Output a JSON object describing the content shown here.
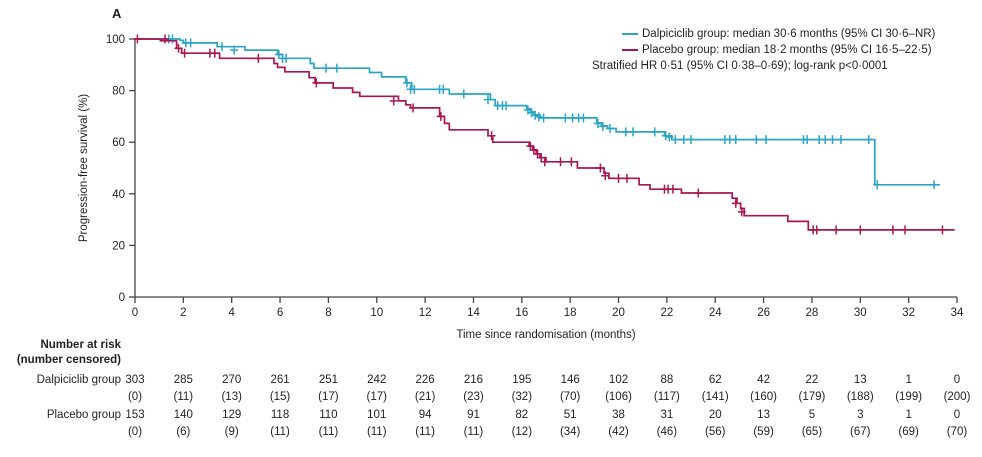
{
  "panel": {
    "label": "A"
  },
  "colors": {
    "dalpiciclib": "#2CA5C4",
    "placebo": "#A81653",
    "axis": "#454547",
    "text": "#231f20"
  },
  "legend": {
    "items": [
      {
        "label": "Dalpiciclib group: median 30·6 months (95% CI 30·6–NR)",
        "color": "#2CA5C4"
      },
      {
        "label": "Placebo group: median 18·2 months (95% CI 16·5–22·5)",
        "color": "#A81653"
      }
    ],
    "note": "Stratified HR 0·51 (95% CI 0·38–0·69); log-rank p<0·0001"
  },
  "chart_data": {
    "type": "line",
    "subtype": "kaplan_meier_step",
    "xlabel": "Time since randomisation (months)",
    "ylabel": "Progression-free survival (%)",
    "xlim": [
      0,
      34
    ],
    "ylim": [
      0,
      100
    ],
    "xticks": [
      0,
      2,
      4,
      6,
      8,
      10,
      12,
      14,
      16,
      18,
      20,
      22,
      24,
      26,
      28,
      30,
      32,
      34
    ],
    "yticks": [
      0,
      20,
      40,
      60,
      80,
      100
    ],
    "grid": false,
    "legend_position": "top-right",
    "series": [
      {
        "name": "Dalpiciclib group",
        "slug": "dalpiciclib",
        "color": "#2CA5C4",
        "start": [
          0,
          100
        ],
        "end_x": 33.3,
        "drops": [
          [
            1.86,
            99.5
          ],
          [
            2.0,
            98.5
          ],
          [
            3.4,
            97
          ],
          [
            4.55,
            95.7
          ],
          [
            5.9,
            94
          ],
          [
            6.1,
            92.5
          ],
          [
            7.25,
            90.5
          ],
          [
            7.4,
            88.7
          ],
          [
            9.7,
            87
          ],
          [
            10.2,
            85.3
          ],
          [
            11.2,
            83
          ],
          [
            11.45,
            80.5
          ],
          [
            13.0,
            78.7
          ],
          [
            14.7,
            76.5
          ],
          [
            14.9,
            74.2
          ],
          [
            16.2,
            73
          ],
          [
            16.35,
            71.8
          ],
          [
            16.5,
            70.6
          ],
          [
            16.75,
            69.4
          ],
          [
            19.1,
            67.5
          ],
          [
            19.3,
            66.3
          ],
          [
            19.55,
            65.3
          ],
          [
            19.9,
            64
          ],
          [
            21.9,
            62.5
          ],
          [
            22.2,
            61
          ],
          [
            30.6,
            43.5
          ]
        ],
        "censors": [
          [
            1.4,
            100
          ],
          [
            1.55,
            100
          ],
          [
            2.1,
            98.5
          ],
          [
            2.3,
            98.5
          ],
          [
            3.6,
            97
          ],
          [
            4.1,
            95.7
          ],
          [
            5.95,
            94
          ],
          [
            6.1,
            92.5
          ],
          [
            6.25,
            92.5
          ],
          [
            7.9,
            88.7
          ],
          [
            8.35,
            88.7
          ],
          [
            11.25,
            83
          ],
          [
            11.4,
            80.5
          ],
          [
            11.55,
            80.5
          ],
          [
            12.6,
            80.5
          ],
          [
            12.75,
            80.5
          ],
          [
            13.6,
            78.7
          ],
          [
            14.6,
            76.5
          ],
          [
            15.0,
            74.2
          ],
          [
            15.2,
            74.2
          ],
          [
            15.35,
            74.2
          ],
          [
            16.25,
            72.5
          ],
          [
            16.4,
            71.4
          ],
          [
            16.55,
            70.4
          ],
          [
            16.7,
            69.8
          ],
          [
            16.9,
            69.4
          ],
          [
            17.8,
            69.4
          ],
          [
            18.1,
            69.4
          ],
          [
            18.35,
            69.4
          ],
          [
            18.55,
            69.4
          ],
          [
            19.15,
            67.2
          ],
          [
            19.35,
            66.1
          ],
          [
            19.65,
            65.3
          ],
          [
            20.3,
            64
          ],
          [
            20.6,
            64
          ],
          [
            21.5,
            64
          ],
          [
            21.95,
            62.5
          ],
          [
            22.1,
            62
          ],
          [
            22.35,
            61
          ],
          [
            22.7,
            61
          ],
          [
            23.0,
            61
          ],
          [
            24.4,
            61
          ],
          [
            24.6,
            61
          ],
          [
            24.85,
            61
          ],
          [
            25.7,
            61
          ],
          [
            26.1,
            61
          ],
          [
            27.65,
            61
          ],
          [
            27.8,
            61
          ],
          [
            28.3,
            61
          ],
          [
            28.55,
            61
          ],
          [
            28.85,
            61
          ],
          [
            29.2,
            61
          ],
          [
            30.35,
            61
          ],
          [
            30.7,
            43.5
          ],
          [
            33.05,
            43.5
          ]
        ]
      },
      {
        "name": "Placebo group",
        "slug": "placebo",
        "color": "#A81653",
        "start": [
          0,
          100
        ],
        "end_x": 33.9,
        "drops": [
          [
            1.05,
            99.3
          ],
          [
            1.72,
            96.4
          ],
          [
            1.93,
            94.5
          ],
          [
            3.5,
            92.5
          ],
          [
            5.75,
            90.5
          ],
          [
            5.9,
            89
          ],
          [
            6.2,
            87.3
          ],
          [
            7.2,
            85
          ],
          [
            7.45,
            83
          ],
          [
            8.2,
            81
          ],
          [
            9.0,
            79.3
          ],
          [
            9.3,
            77.8
          ],
          [
            10.9,
            76
          ],
          [
            11.2,
            74.5
          ],
          [
            11.4,
            73.3
          ],
          [
            12.6,
            70
          ],
          [
            12.8,
            67.3
          ],
          [
            13.0,
            64.8
          ],
          [
            14.6,
            62.5
          ],
          [
            14.8,
            60
          ],
          [
            16.3,
            58.5
          ],
          [
            16.45,
            57
          ],
          [
            16.6,
            55.5
          ],
          [
            16.75,
            54
          ],
          [
            17.0,
            52.4
          ],
          [
            18.3,
            50
          ],
          [
            19.4,
            48
          ],
          [
            19.6,
            46
          ],
          [
            20.85,
            43.5
          ],
          [
            21.3,
            41.8
          ],
          [
            22.6,
            40.3
          ],
          [
            24.7,
            38.3
          ],
          [
            24.9,
            36.3
          ],
          [
            25.05,
            34.3
          ],
          [
            25.2,
            31.5
          ],
          [
            27.0,
            29.3
          ],
          [
            27.85,
            26
          ]
        ],
        "censors": [
          [
            0.1,
            100
          ],
          [
            1.24,
            100
          ],
          [
            1.8,
            96.4
          ],
          [
            2.05,
            94.5
          ],
          [
            3.1,
            94.5
          ],
          [
            3.3,
            94.5
          ],
          [
            5.1,
            92.5
          ],
          [
            7.5,
            83
          ],
          [
            10.7,
            76
          ],
          [
            11.5,
            73.3
          ],
          [
            12.65,
            70
          ],
          [
            14.75,
            62.5
          ],
          [
            16.35,
            58.5
          ],
          [
            16.5,
            56.9
          ],
          [
            16.65,
            55.4
          ],
          [
            16.8,
            54
          ],
          [
            16.95,
            52.4
          ],
          [
            17.6,
            52.4
          ],
          [
            18.05,
            52.4
          ],
          [
            19.25,
            50
          ],
          [
            19.45,
            47
          ],
          [
            20.0,
            46
          ],
          [
            20.35,
            46
          ],
          [
            21.9,
            41.8
          ],
          [
            22.05,
            41.8
          ],
          [
            22.25,
            41.8
          ],
          [
            23.3,
            40.3
          ],
          [
            24.85,
            36.3
          ],
          [
            25.1,
            33
          ],
          [
            28.05,
            26
          ],
          [
            28.2,
            26
          ],
          [
            29.0,
            26
          ],
          [
            30.0,
            26
          ],
          [
            31.35,
            26
          ],
          [
            31.85,
            26
          ],
          [
            33.4,
            26
          ]
        ]
      }
    ]
  },
  "risk_table": {
    "header_line1": "Number at risk",
    "header_line2": "(number censored)",
    "times": [
      0,
      2,
      4,
      6,
      8,
      10,
      12,
      14,
      16,
      18,
      20,
      22,
      24,
      26,
      28,
      30,
      32,
      34
    ],
    "rows": [
      {
        "label": "Dalpiciclib group",
        "counts": [
          "303",
          "285",
          "270",
          "261",
          "251",
          "242",
          "226",
          "216",
          "195",
          "146",
          "102",
          "88",
          "62",
          "42",
          "22",
          "13",
          "1",
          "0"
        ],
        "censored": [
          "(0)",
          "(11)",
          "(13)",
          "(15)",
          "(17)",
          "(17)",
          "(21)",
          "(23)",
          "(32)",
          "(70)",
          "(106)",
          "(117)",
          "(141)",
          "(160)",
          "(179)",
          "(188)",
          "(199)",
          "(200)"
        ]
      },
      {
        "label": "Placebo group",
        "counts": [
          "153",
          "140",
          "129",
          "118",
          "110",
          "101",
          "94",
          "91",
          "82",
          "51",
          "38",
          "31",
          "20",
          "13",
          "5",
          "3",
          "1",
          "0"
        ],
        "censored": [
          "(0)",
          "(6)",
          "(9)",
          "(11)",
          "(11)",
          "(11)",
          "(11)",
          "(11)",
          "(12)",
          "(34)",
          "(42)",
          "(46)",
          "(56)",
          "(59)",
          "(65)",
          "(67)",
          "(69)",
          "(70)"
        ]
      }
    ]
  }
}
